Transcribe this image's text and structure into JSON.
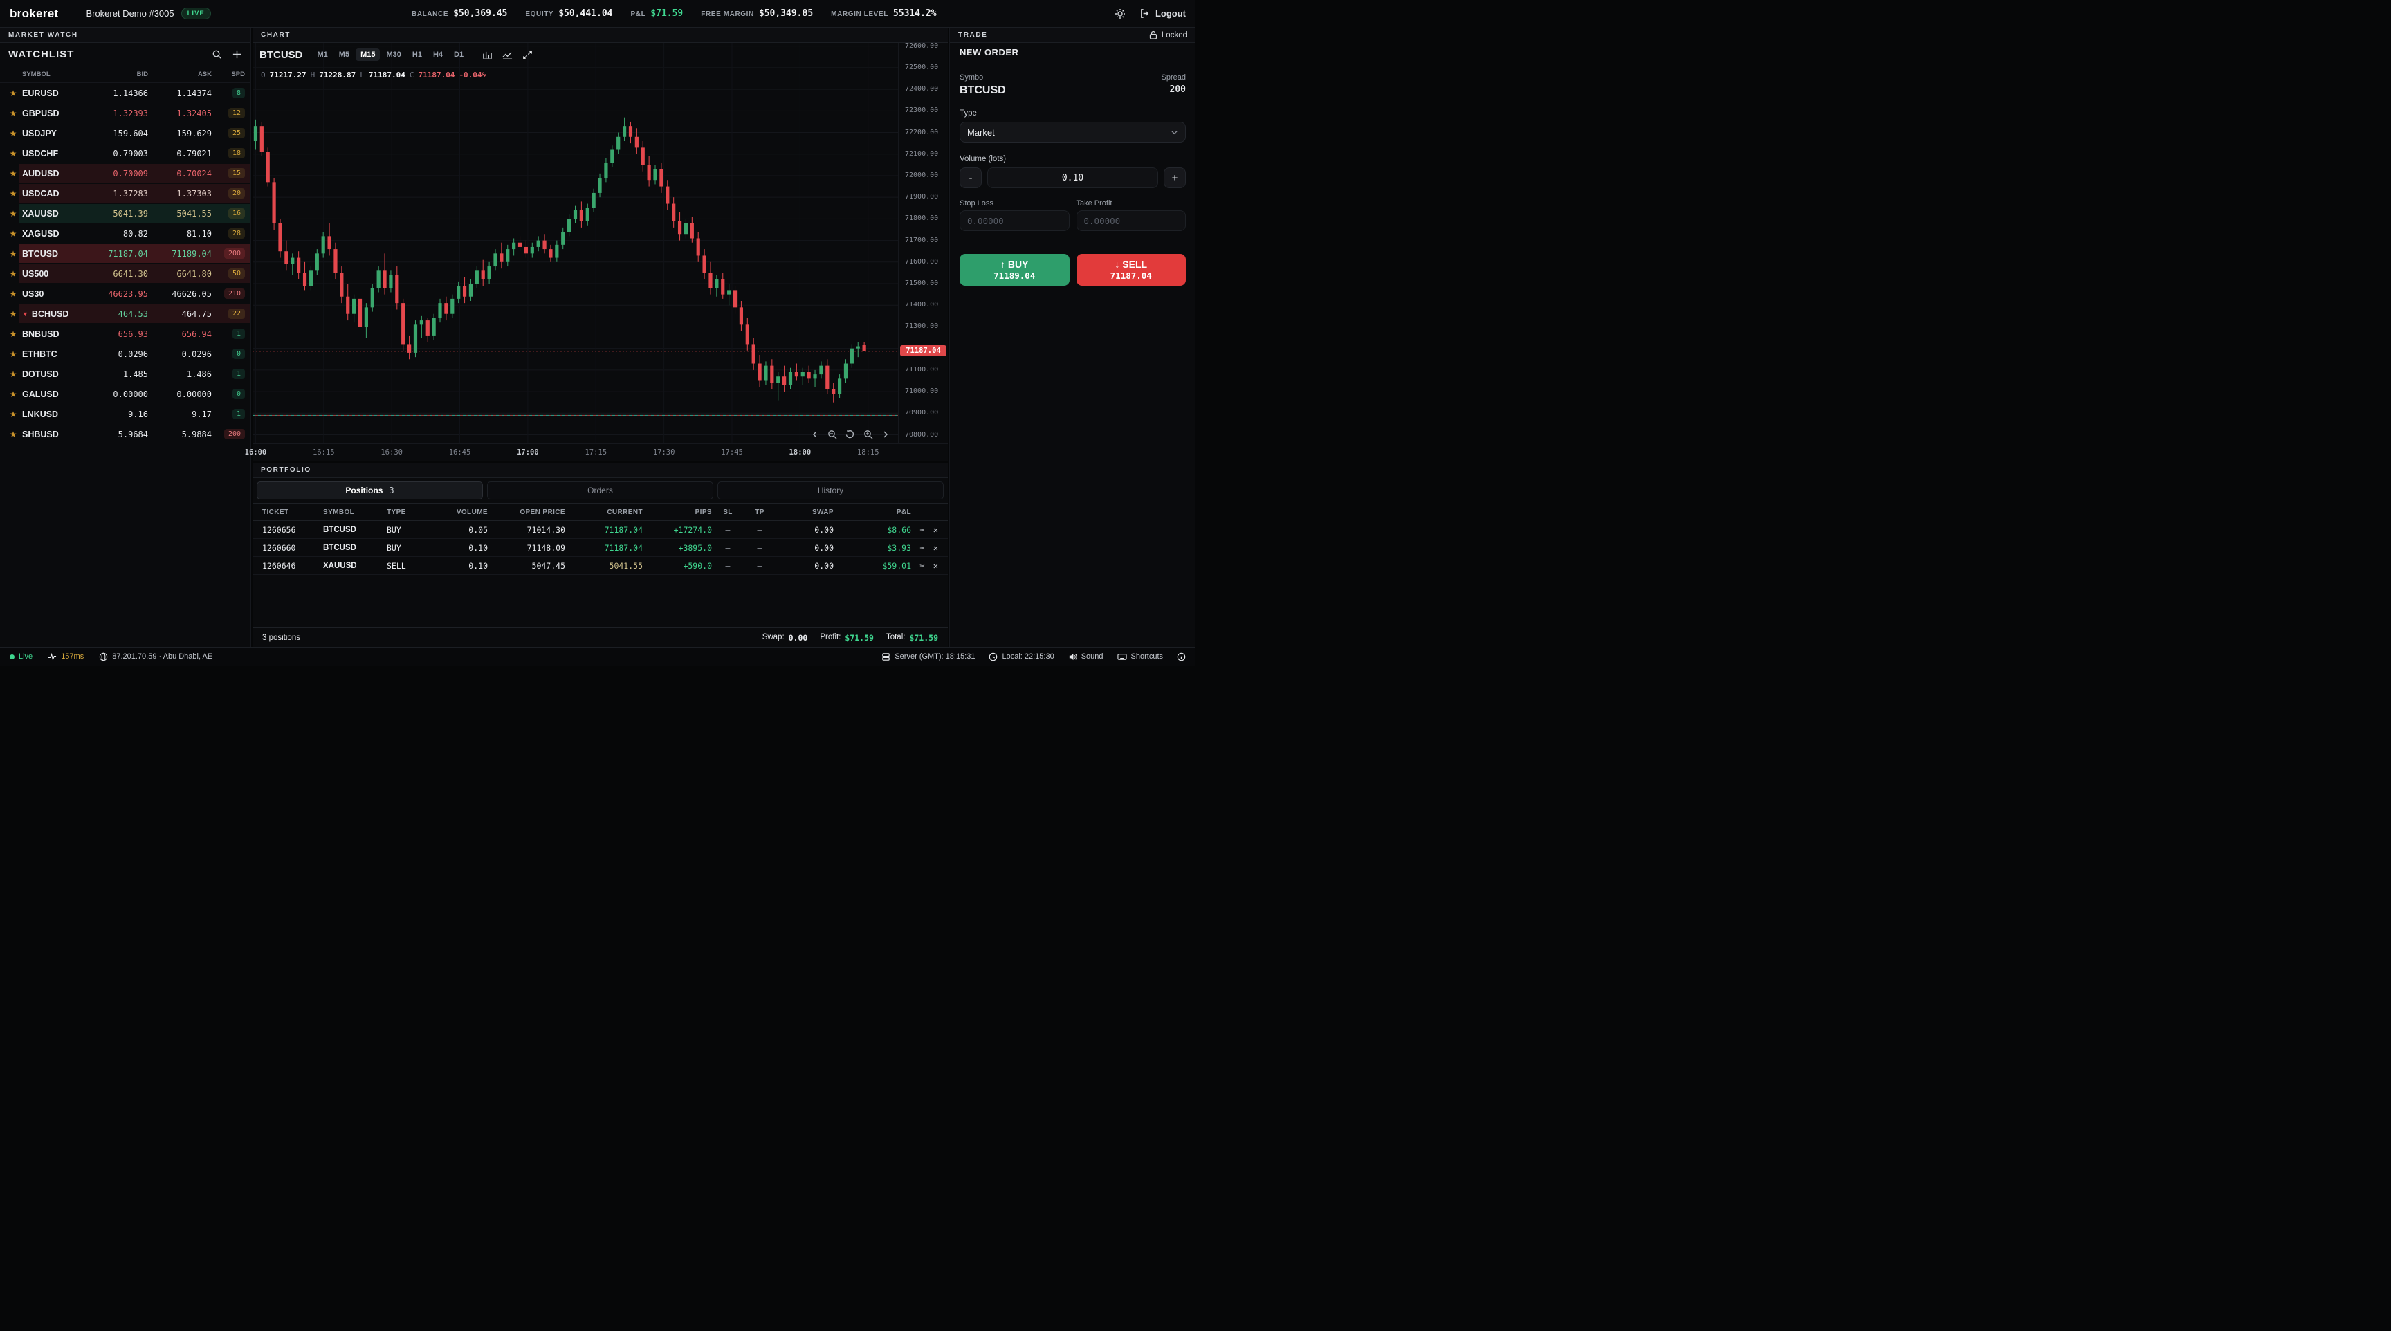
{
  "topbar": {
    "logo": "brokeret",
    "account_name": "Brokeret Demo #3005",
    "live_badge": "LIVE",
    "stats": [
      {
        "label": "BALANCE",
        "value": "$50,369.45",
        "tone": "default"
      },
      {
        "label": "EQUITY",
        "value": "$50,441.04",
        "tone": "default"
      },
      {
        "label": "P&L",
        "value": "$71.59",
        "tone": "green"
      },
      {
        "label": "FREE MARGIN",
        "value": "$50,349.85",
        "tone": "default"
      },
      {
        "label": "MARGIN LEVEL",
        "value": "55314.2%",
        "tone": "default"
      }
    ],
    "logout_label": "Logout"
  },
  "market_watch": {
    "panel_title": "MARKET WATCH",
    "list_title": "WATCHLIST",
    "columns": [
      "SYMBOL",
      "BID",
      "ASK",
      "SPD"
    ],
    "rows": [
      {
        "symbol": "EURUSD",
        "bid": "1.14366",
        "ask": "1.14374",
        "spread": "8",
        "spread_tone": "green",
        "bid_tone": "white",
        "ask_tone": "white",
        "tint": "none",
        "expanded": false
      },
      {
        "symbol": "GBPUSD",
        "bid": "1.32393",
        "ask": "1.32405",
        "spread": "12",
        "spread_tone": "amber",
        "bid_tone": "red",
        "ask_tone": "red",
        "tint": "none",
        "expanded": false
      },
      {
        "symbol": "USDJPY",
        "bid": "159.604",
        "ask": "159.629",
        "spread": "25",
        "spread_tone": "amber",
        "bid_tone": "white",
        "ask_tone": "white",
        "tint": "none",
        "expanded": false
      },
      {
        "symbol": "USDCHF",
        "bid": "0.79003",
        "ask": "0.79021",
        "spread": "18",
        "spread_tone": "amber",
        "bid_tone": "white",
        "ask_tone": "white",
        "tint": "none",
        "expanded": false
      },
      {
        "symbol": "AUDUSD",
        "bid": "0.70009",
        "ask": "0.70024",
        "spread": "15",
        "spread_tone": "amber",
        "bid_tone": "red",
        "ask_tone": "red",
        "tint": "red",
        "expanded": false
      },
      {
        "symbol": "USDCAD",
        "bid": "1.37283",
        "ask": "1.37303",
        "spread": "20",
        "spread_tone": "amber",
        "bid_tone": "beige",
        "ask_tone": "beige",
        "tint": "red",
        "expanded": false
      },
      {
        "symbol": "XAUUSD",
        "bid": "5041.39",
        "ask": "5041.55",
        "spread": "16",
        "spread_tone": "amber",
        "bid_tone": "gold",
        "ask_tone": "gold",
        "tint": "green",
        "expanded": false
      },
      {
        "symbol": "XAGUSD",
        "bid": "80.82",
        "ask": "81.10",
        "spread": "28",
        "spread_tone": "amber",
        "bid_tone": "white",
        "ask_tone": "white",
        "tint": "none",
        "expanded": false
      },
      {
        "symbol": "BTCUSD",
        "bid": "71187.04",
        "ask": "71189.04",
        "spread": "200",
        "spread_tone": "red",
        "bid_tone": "green",
        "ask_tone": "green",
        "tint": "red-strong",
        "expanded": false
      },
      {
        "symbol": "US500",
        "bid": "6641.30",
        "ask": "6641.80",
        "spread": "50",
        "spread_tone": "amber",
        "bid_tone": "gold",
        "ask_tone": "gold",
        "tint": "red",
        "expanded": false
      },
      {
        "symbol": "US30",
        "bid": "46623.95",
        "ask": "46626.05",
        "spread": "210",
        "spread_tone": "red",
        "bid_tone": "red",
        "ask_tone": "white",
        "tint": "none",
        "expanded": false
      },
      {
        "symbol": "BCHUSD",
        "bid": "464.53",
        "ask": "464.75",
        "spread": "22",
        "spread_tone": "amber",
        "bid_tone": "green",
        "ask_tone": "white",
        "tint": "red",
        "expanded": true
      },
      {
        "symbol": "BNBUSD",
        "bid": "656.93",
        "ask": "656.94",
        "spread": "1",
        "spread_tone": "green",
        "bid_tone": "red",
        "ask_tone": "red",
        "tint": "none",
        "expanded": false
      },
      {
        "symbol": "ETHBTC",
        "bid": "0.0296",
        "ask": "0.0296",
        "spread": "0",
        "spread_tone": "green",
        "bid_tone": "white",
        "ask_tone": "white",
        "tint": "none",
        "expanded": false
      },
      {
        "symbol": "DOTUSD",
        "bid": "1.485",
        "ask": "1.486",
        "spread": "1",
        "spread_tone": "green",
        "bid_tone": "white",
        "ask_tone": "white",
        "tint": "none",
        "expanded": false
      },
      {
        "symbol": "GALUSD",
        "bid": "0.00000",
        "ask": "0.00000",
        "spread": "0",
        "spread_tone": "green",
        "bid_tone": "white",
        "ask_tone": "white",
        "tint": "none",
        "expanded": false
      },
      {
        "symbol": "LNKUSD",
        "bid": "9.16",
        "ask": "9.17",
        "spread": "1",
        "spread_tone": "green",
        "bid_tone": "white",
        "ask_tone": "white",
        "tint": "none",
        "expanded": false
      },
      {
        "symbol": "SHBUSD",
        "bid": "5.9684",
        "ask": "5.9884",
        "spread": "200",
        "spread_tone": "red",
        "bid_tone": "white",
        "ask_tone": "white",
        "tint": "none",
        "expanded": false
      }
    ]
  },
  "chart": {
    "panel_title": "CHART",
    "symbol": "BTCUSD",
    "timeframes": [
      "M1",
      "M5",
      "M15",
      "M30",
      "H1",
      "H4",
      "D1"
    ],
    "active_timeframe": "M15",
    "ohlc": {
      "o_label": "O",
      "o": "71217.27",
      "h_label": "H",
      "h": "71228.87",
      "l_label": "L",
      "l": "71187.04",
      "c_label": "C",
      "c": "71187.04",
      "change": "-0.04%"
    },
    "price_tag": "71187.04"
  },
  "chart_data": {
    "type": "candlestick",
    "symbol": "BTCUSD",
    "timeframe_selected": "M15",
    "title": "BTCUSD intraday candlestick chart",
    "y_axis": {
      "min": 70800,
      "max": 72600,
      "step": 100
    },
    "view": {
      "price_min": 70760,
      "price_max": 72615
    },
    "current_price": 71187.04,
    "current_price_label": "71187.04",
    "baseline_price": 70890,
    "minutes_per_candle": 1.355,
    "x_labels": [
      {
        "t": 0,
        "label": "16:00",
        "bold": true
      },
      {
        "t": 15,
        "label": "16:15",
        "bold": false
      },
      {
        "t": 30,
        "label": "16:30",
        "bold": false
      },
      {
        "t": 45,
        "label": "16:45",
        "bold": false
      },
      {
        "t": 60,
        "label": "17:00",
        "bold": true
      },
      {
        "t": 75,
        "label": "17:15",
        "bold": false
      },
      {
        "t": 90,
        "label": "17:30",
        "bold": false
      },
      {
        "t": 105,
        "label": "17:45",
        "bold": false
      },
      {
        "t": 120,
        "label": "18:00",
        "bold": true
      },
      {
        "t": 135,
        "label": "18:15",
        "bold": false
      }
    ],
    "candles": [
      [
        72160,
        72260,
        72120,
        72230
      ],
      [
        72230,
        72250,
        72090,
        72110
      ],
      [
        72110,
        72130,
        71950,
        71970
      ],
      [
        71970,
        71990,
        71750,
        71780
      ],
      [
        71780,
        71800,
        71620,
        71650
      ],
      [
        71650,
        71700,
        71560,
        71590
      ],
      [
        71590,
        71640,
        71540,
        71620
      ],
      [
        71620,
        71650,
        71520,
        71550
      ],
      [
        71550,
        71600,
        71470,
        71490
      ],
      [
        71490,
        71580,
        71470,
        71560
      ],
      [
        71560,
        71660,
        71540,
        71640
      ],
      [
        71640,
        71740,
        71620,
        71720
      ],
      [
        71720,
        71780,
        71630,
        71660
      ],
      [
        71660,
        71690,
        71520,
        71550
      ],
      [
        71550,
        71580,
        71410,
        71440
      ],
      [
        71440,
        71500,
        71330,
        71360
      ],
      [
        71360,
        71450,
        71320,
        71430
      ],
      [
        71430,
        71460,
        71280,
        71300
      ],
      [
        71300,
        71410,
        71250,
        71390
      ],
      [
        71390,
        71500,
        71370,
        71480
      ],
      [
        71480,
        71580,
        71460,
        71560
      ],
      [
        71560,
        71640,
        71450,
        71480
      ],
      [
        71480,
        71560,
        71460,
        71540
      ],
      [
        71540,
        71580,
        71380,
        71410
      ],
      [
        71410,
        71430,
        71190,
        71220
      ],
      [
        71220,
        71260,
        71150,
        71180
      ],
      [
        71180,
        71330,
        71160,
        71310
      ],
      [
        71310,
        71350,
        71250,
        71330
      ],
      [
        71330,
        71340,
        71230,
        71260
      ],
      [
        71260,
        71360,
        71240,
        71340
      ],
      [
        71340,
        71430,
        71320,
        71410
      ],
      [
        71410,
        71440,
        71330,
        71360
      ],
      [
        71360,
        71450,
        71340,
        71430
      ],
      [
        71430,
        71510,
        71410,
        71490
      ],
      [
        71490,
        71530,
        71410,
        71440
      ],
      [
        71440,
        71520,
        71420,
        71500
      ],
      [
        71500,
        71580,
        71480,
        71560
      ],
      [
        71560,
        71610,
        71490,
        71520
      ],
      [
        71520,
        71600,
        71500,
        71580
      ],
      [
        71580,
        71660,
        71560,
        71640
      ],
      [
        71640,
        71690,
        71570,
        71600
      ],
      [
        71600,
        71680,
        71580,
        71660
      ],
      [
        71660,
        71710,
        71630,
        71690
      ],
      [
        71690,
        71720,
        71650,
        71670
      ],
      [
        71670,
        71700,
        71620,
        71640
      ],
      [
        71640,
        71690,
        71620,
        71670
      ],
      [
        71670,
        71720,
        71650,
        71700
      ],
      [
        71700,
        71730,
        71640,
        71660
      ],
      [
        71660,
        71680,
        71600,
        71620
      ],
      [
        71620,
        71700,
        71600,
        71680
      ],
      [
        71680,
        71760,
        71660,
        71740
      ],
      [
        71740,
        71820,
        71720,
        71800
      ],
      [
        71800,
        71860,
        71780,
        71840
      ],
      [
        71840,
        71880,
        71760,
        71790
      ],
      [
        71790,
        71870,
        71770,
        71850
      ],
      [
        71850,
        71940,
        71830,
        71920
      ],
      [
        71920,
        72010,
        71900,
        71990
      ],
      [
        71990,
        72080,
        71970,
        72060
      ],
      [
        72060,
        72140,
        72040,
        72120
      ],
      [
        72120,
        72200,
        72100,
        72180
      ],
      [
        72180,
        72270,
        72160,
        72230
      ],
      [
        72230,
        72250,
        72150,
        72180
      ],
      [
        72180,
        72220,
        72100,
        72130
      ],
      [
        72130,
        72160,
        72020,
        72050
      ],
      [
        72050,
        72090,
        71950,
        71980
      ],
      [
        71980,
        72050,
        71960,
        72030
      ],
      [
        72030,
        72060,
        71920,
        71950
      ],
      [
        71950,
        71980,
        71840,
        71870
      ],
      [
        71870,
        71900,
        71760,
        71790
      ],
      [
        71790,
        71830,
        71700,
        71730
      ],
      [
        71730,
        71800,
        71710,
        71780
      ],
      [
        71780,
        71810,
        71690,
        71710
      ],
      [
        71710,
        71740,
        71600,
        71630
      ],
      [
        71630,
        71660,
        71520,
        71550
      ],
      [
        71550,
        71600,
        71450,
        71480
      ],
      [
        71480,
        71540,
        71440,
        71520
      ],
      [
        71520,
        71550,
        71430,
        71450
      ],
      [
        71450,
        71500,
        71400,
        71470
      ],
      [
        71470,
        71490,
        71360,
        71390
      ],
      [
        71390,
        71420,
        71280,
        71310
      ],
      [
        71310,
        71340,
        71190,
        71220
      ],
      [
        71220,
        71250,
        71100,
        71130
      ],
      [
        71130,
        71170,
        71020,
        71050
      ],
      [
        71050,
        71140,
        71030,
        71120
      ],
      [
        71120,
        71150,
        71010,
        71040
      ],
      [
        71040,
        71090,
        70960,
        71070
      ],
      [
        71070,
        71120,
        71000,
        71030
      ],
      [
        71030,
        71110,
        71010,
        71090
      ],
      [
        71090,
        71130,
        71050,
        71070
      ],
      [
        71070,
        71110,
        71030,
        71090
      ],
      [
        71090,
        71120,
        71040,
        71060
      ],
      [
        71060,
        71100,
        71020,
        71080
      ],
      [
        71080,
        71140,
        71060,
        71120
      ],
      [
        71120,
        71150,
        70990,
        71010
      ],
      [
        71010,
        71040,
        70950,
        70990
      ],
      [
        70990,
        71080,
        70970,
        71060
      ],
      [
        71060,
        71150,
        71040,
        71130
      ],
      [
        71130,
        71220,
        71110,
        71200
      ],
      [
        71200,
        71230,
        71160,
        71210
      ],
      [
        71217.27,
        71228.87,
        71187.04,
        71187.04
      ]
    ]
  },
  "trade": {
    "panel_title": "TRADE",
    "locked_label": "Locked",
    "section_title": "NEW ORDER",
    "symbol_label": "Symbol",
    "symbol": "BTCUSD",
    "spread_label": "Spread",
    "spread": "200",
    "type_label": "Type",
    "type_value": "Market",
    "volume_label": "Volume (lots)",
    "volume_value": "0.10",
    "minus_label": "-",
    "plus_label": "+",
    "sl_label": "Stop Loss",
    "sl_placeholder": "0.00000",
    "tp_label": "Take Profit",
    "tp_placeholder": "0.00000",
    "buy_label": "↑ BUY",
    "buy_price": "71189.04",
    "sell_label": "↓ SELL",
    "sell_price": "71187.04"
  },
  "portfolio": {
    "panel_title": "PORTFOLIO",
    "tabs": [
      {
        "label": "Positions",
        "count": "3",
        "active": true
      },
      {
        "label": "Orders",
        "count": "",
        "active": false
      },
      {
        "label": "History",
        "count": "",
        "active": false
      }
    ],
    "columns": [
      "TICKET",
      "SYMBOL",
      "TYPE",
      "VOLUME",
      "OPEN PRICE",
      "CURRENT",
      "PIPS",
      "SL",
      "TP",
      "SWAP",
      "P&L"
    ],
    "positions": [
      {
        "ticket": "1260656",
        "symbol": "BTCUSD",
        "type": "BUY",
        "volume": "0.05",
        "open_price": "71014.30",
        "current": "71187.04",
        "current_tone": "grn",
        "pips": "+17274.0",
        "sl": "—",
        "tp": "—",
        "swap": "0.00",
        "pnl": "$8.66"
      },
      {
        "ticket": "1260660",
        "symbol": "BTCUSD",
        "type": "BUY",
        "volume": "0.10",
        "open_price": "71148.09",
        "current": "71187.04",
        "current_tone": "grn",
        "pips": "+3895.0",
        "sl": "—",
        "tp": "—",
        "swap": "0.00",
        "pnl": "$3.93"
      },
      {
        "ticket": "1260646",
        "symbol": "XAUUSD",
        "type": "SELL",
        "volume": "0.10",
        "open_price": "5047.45",
        "current": "5041.55",
        "current_tone": "gold",
        "pips": "+590.0",
        "sl": "—",
        "tp": "—",
        "swap": "0.00",
        "pnl": "$59.01"
      }
    ],
    "footer": {
      "count": "3 positions",
      "swap_label": "Swap:",
      "swap": "0.00",
      "profit_label": "Profit:",
      "profit": "$71.59",
      "total_label": "Total:",
      "total": "$71.59"
    }
  },
  "statusbar": {
    "live": "Live",
    "latency": "157ms",
    "location": "87.201.70.59 · Abu Dhabi, AE",
    "server_time": "Server (GMT): 18:15:31",
    "local_time": "Local: 22:15:30",
    "sound": "Sound",
    "shortcuts": "Shortcuts"
  }
}
